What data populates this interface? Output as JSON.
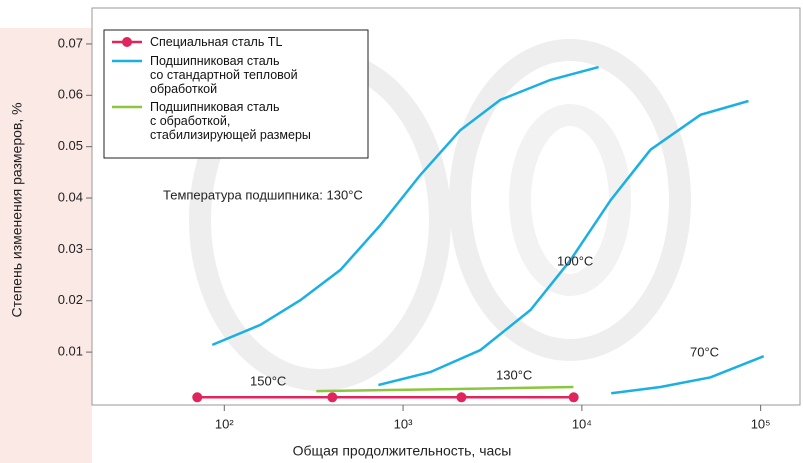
{
  "chart_data": {
    "type": "line",
    "log_x": true,
    "x_label": "Общая продолжительность, часы",
    "y_label": "Степень изменения размеров, %",
    "xlim": [
      18.2,
      166000
    ],
    "ylim": [
      -0.0003,
      0.077
    ],
    "xticks": [
      {
        "value": 100,
        "label": "10²"
      },
      {
        "value": 1000,
        "label": "10³"
      },
      {
        "value": 10000,
        "label": "10⁴"
      },
      {
        "value": 100000,
        "label": "10⁵"
      }
    ],
    "yticks": [
      0.01,
      0.02,
      0.03,
      0.04,
      0.05,
      0.06,
      0.07
    ],
    "series": [
      {
        "name": "Специальная сталь TL",
        "color": "#e0245e",
        "marker": true,
        "x": [
          70.6,
          402,
          2120,
          9000
        ],
        "values": [
          0.0012,
          0.0012,
          0.0012,
          0.0012
        ]
      },
      {
        "name": "Подшипниковая сталь\nсо стандартной тепловой\nобработкой",
        "color": "#1ab0e4",
        "marker": false,
        "x": [
          85.7,
          159,
          266,
          446,
          746,
          1250,
          2090,
          3500,
          6670,
          12400,
          null,
          728,
          1420,
          2710,
          5160,
          8630,
          14500,
          24200,
          46100,
          85500,
          null,
          14600,
          27500,
          52500,
          104000
        ],
        "values": [
          0.0114,
          0.0153,
          0.0201,
          0.026,
          0.0347,
          0.0445,
          0.0532,
          0.0591,
          0.063,
          0.0655,
          null,
          0.0036,
          0.0061,
          0.0104,
          0.0182,
          0.0279,
          0.0396,
          0.0494,
          0.0562,
          0.0589,
          null,
          0.002,
          0.0032,
          0.0051,
          0.0092
        ]
      },
      {
        "name": "Подшипниковая сталь\nс обработкой,\nстабилизирующей размеры",
        "color": "#8cc63f",
        "marker": false,
        "x": [
          327,
          1840,
          8970
        ],
        "values": [
          0.0024,
          0.0028,
          0.0032
        ]
      }
    ],
    "annotations": [
      "Температура подшипника: 130°C",
      "100°C",
      "70°C",
      "150°C",
      "130°C"
    ]
  }
}
